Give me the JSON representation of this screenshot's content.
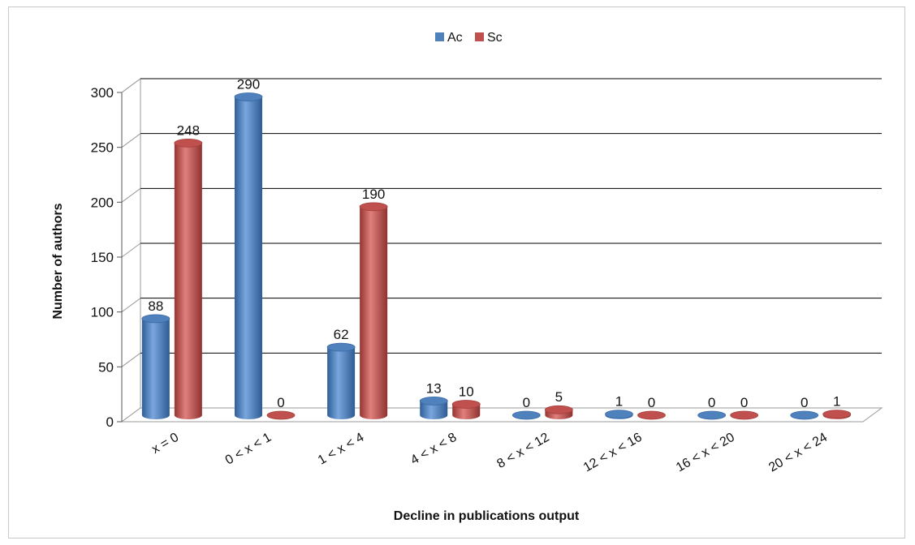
{
  "chart_data": {
    "type": "bar",
    "title": "",
    "xlabel": "Decline in publications output",
    "ylabel": "Number of authors",
    "ylim": [
      0,
      300
    ],
    "yticks": [
      0,
      50,
      100,
      150,
      200,
      250,
      300
    ],
    "grid": true,
    "legend_position": "top",
    "categories": [
      "x = 0",
      "0 < x < 1",
      "1 < x < 4",
      "4 < x < 8",
      "8 < x < 12",
      "12 < x < 16",
      "16 < x < 20",
      "20 < x < 24"
    ],
    "series": [
      {
        "name": "Ac",
        "color": "#4f81bd",
        "values": [
          88,
          290,
          62,
          13,
          0,
          1,
          0,
          0
        ]
      },
      {
        "name": "Sc",
        "color": "#c0504d",
        "values": [
          248,
          0,
          190,
          10,
          5,
          0,
          0,
          1
        ]
      }
    ]
  }
}
